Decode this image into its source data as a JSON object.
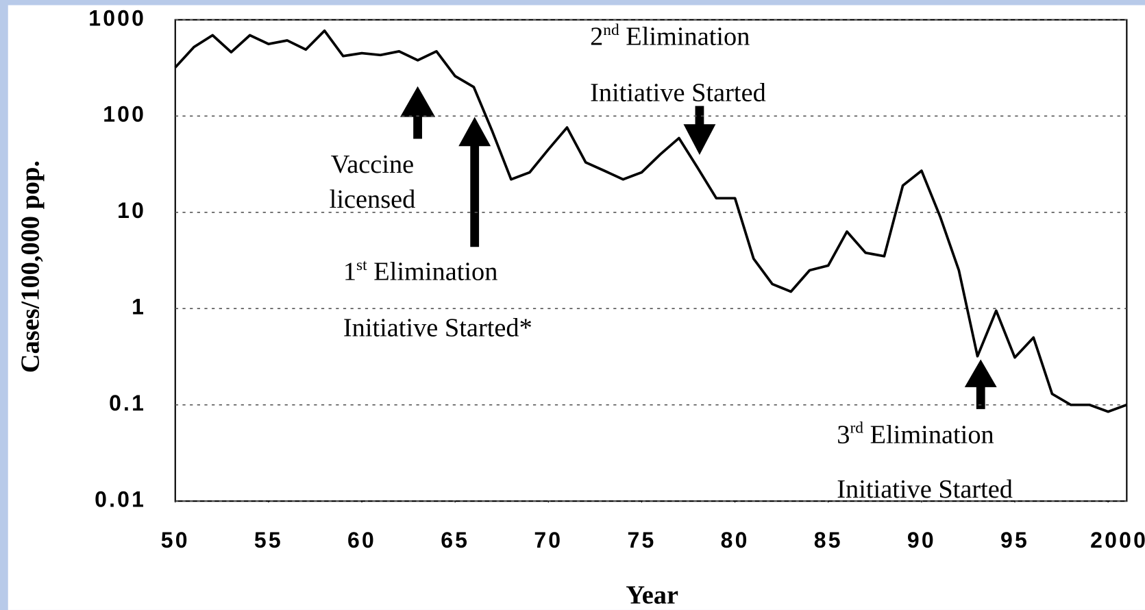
{
  "chart_data": {
    "type": "line",
    "x_label": "Year",
    "y_label": "Cases/100,000 pop.",
    "log_y": true,
    "grid": true,
    "color": "#000000",
    "xlim": [
      1950,
      2001
    ],
    "ylim": [
      0.01,
      1000
    ],
    "xticks": [
      {
        "value": 1950,
        "label": "50"
      },
      {
        "value": 1955,
        "label": "55"
      },
      {
        "value": 1960,
        "label": "60"
      },
      {
        "value": 1965,
        "label": "65"
      },
      {
        "value": 1970,
        "label": "70"
      },
      {
        "value": 1975,
        "label": "75"
      },
      {
        "value": 1980,
        "label": "80"
      },
      {
        "value": 1985,
        "label": "85"
      },
      {
        "value": 1990,
        "label": "90"
      },
      {
        "value": 1995,
        "label": "95"
      },
      2000
    ],
    "yticks": [
      1000,
      100,
      10,
      1,
      0.1,
      0.01
    ],
    "x": [
      1950,
      1951,
      1952,
      1953,
      1954,
      1955,
      1956,
      1957,
      1958,
      1959,
      1960,
      1961,
      1962,
      1963,
      1964,
      1965,
      1966,
      1967,
      1968,
      1969,
      1970,
      1971,
      1972,
      1973,
      1974,
      1975,
      1976,
      1977,
      1978,
      1979,
      1980,
      1981,
      1982,
      1983,
      1984,
      1985,
      1986,
      1987,
      1988,
      1989,
      1990,
      1991,
      1992,
      1993,
      1994,
      1995,
      1996,
      1997,
      1998,
      1999,
      2000,
      2001
    ],
    "values": [
      320,
      520,
      690,
      460,
      690,
      560,
      610,
      490,
      770,
      420,
      450,
      430,
      470,
      380,
      470,
      260,
      200,
      69,
      22,
      26,
      45,
      76,
      33,
      27,
      22,
      26,
      40,
      59,
      29,
      14,
      14,
      3.3,
      1.8,
      1.5,
      2.5,
      2.8,
      6.3,
      3.8,
      3.5,
      19,
      27,
      9,
      2.5,
      0.32,
      0.95,
      0.31,
      0.5,
      0.13,
      0.1,
      0.1,
      0.085,
      0.1
    ],
    "annotations": [
      {
        "lines": [
          "Vaccine",
          "licensed"
        ]
      },
      {
        "lines": [
          "1st  Elimination",
          "Initiative Started*"
        ]
      },
      {
        "lines": [
          "2nd Elimination",
          "Initiative Started"
        ]
      },
      {
        "lines": [
          "3rd Elimination",
          "Initiative Started"
        ]
      }
    ]
  }
}
